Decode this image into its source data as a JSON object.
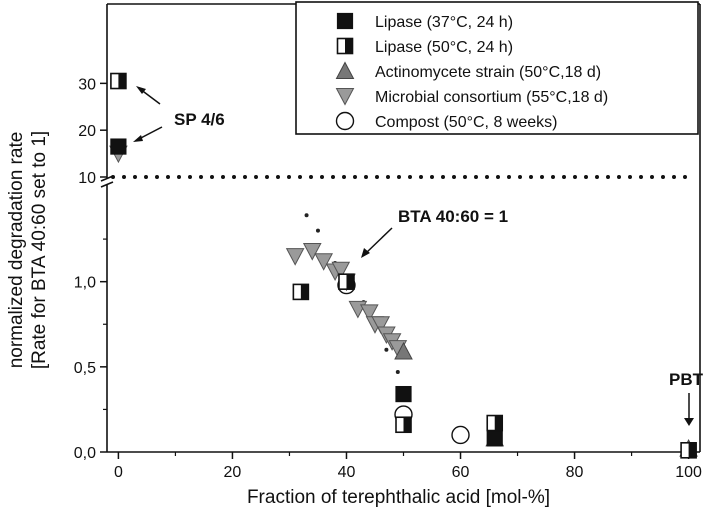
{
  "chart_data": {
    "type": "scatter",
    "xlabel": "Fraction of terephthalic acid [mol-%]",
    "ylabel_line1": "normalized degradation rate",
    "ylabel_line2": "[Rate for BTA 40:60 set to 1]",
    "xlim": [
      -2,
      102
    ],
    "x_ticks": [
      0,
      20,
      40,
      60,
      80,
      100
    ],
    "y_lower": {
      "range": [
        0,
        1.55
      ],
      "ticks": [
        0.0,
        0.5,
        1.0
      ],
      "tick_labels": [
        "0,0",
        "0,5",
        "1,0"
      ]
    },
    "y_upper": {
      "range": [
        10,
        32
      ],
      "ticks": [
        10,
        20,
        30
      ],
      "tick_labels": [
        "10",
        "20",
        "30"
      ]
    },
    "axis_break": true,
    "reference_line_y": 10,
    "legend_position": "top-right",
    "series": [
      {
        "name": "Lipase (37°C, 24 h)",
        "marker": "square-filled",
        "points": [
          [
            0,
            16.5
          ],
          [
            50,
            0.34
          ],
          [
            66,
            0.08
          ],
          [
            100,
            0.01
          ]
        ]
      },
      {
        "name": "Lipase (50°C, 24 h)",
        "marker": "square-half",
        "points": [
          [
            0,
            30.5
          ],
          [
            32,
            0.94
          ],
          [
            40,
            1.0
          ],
          [
            50,
            0.16
          ],
          [
            66,
            0.17
          ],
          [
            100,
            0.01
          ]
        ]
      },
      {
        "name": "Actinomycete strain (50°C,18 d)",
        "marker": "triangle-up",
        "points": [
          [
            50,
            0.59
          ],
          [
            66,
            0.08
          ],
          [
            100,
            0.02
          ]
        ]
      },
      {
        "name": "Microbial consortium (55°C,18 d)",
        "marker": "triangle-down",
        "points": [
          [
            0,
            15.0
          ],
          [
            31,
            1.15
          ],
          [
            34,
            1.18
          ],
          [
            36,
            1.12
          ],
          [
            38,
            1.06
          ],
          [
            39,
            1.07
          ],
          [
            40,
            1.0
          ],
          [
            42,
            0.84
          ],
          [
            44,
            0.82
          ],
          [
            45,
            0.75
          ],
          [
            46,
            0.75
          ],
          [
            47,
            0.69
          ],
          [
            48,
            0.65
          ],
          [
            49,
            0.61
          ]
        ]
      },
      {
        "name": "Compost (50°C, 8 weeks)",
        "marker": "circle-open",
        "points": [
          [
            40,
            0.98
          ],
          [
            50,
            0.22
          ],
          [
            60,
            0.1
          ]
        ]
      }
    ],
    "trend_dots": [
      [
        33,
        1.39
      ],
      [
        35,
        1.3
      ],
      [
        38,
        1.11
      ],
      [
        41,
        0.99
      ],
      [
        43,
        0.88
      ],
      [
        45,
        0.78
      ],
      [
        47,
        0.6
      ],
      [
        49,
        0.47
      ],
      [
        51,
        0.31
      ]
    ],
    "annotations": [
      {
        "text": "SP 4/6"
      },
      {
        "text": "BTA 40:60 = 1"
      },
      {
        "text": "PBT"
      }
    ]
  }
}
